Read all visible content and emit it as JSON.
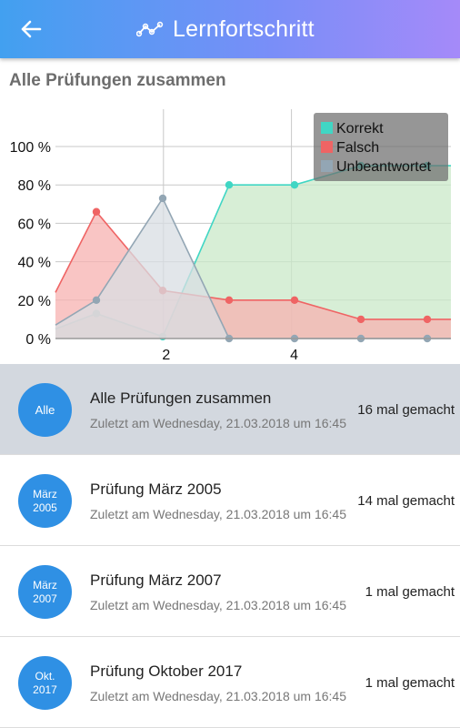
{
  "header": {
    "title": "Lernfortschritt",
    "back_icon": "arrow-left-icon",
    "title_icon": "chart-line-icon"
  },
  "section": {
    "title": "Alle Prüfungen zusammen"
  },
  "chart_data": {
    "type": "area",
    "x": [
      0,
      1,
      2,
      3,
      4,
      5,
      6,
      7
    ],
    "xticks": [
      2,
      4
    ],
    "xtick_labels": [
      "2",
      "4"
    ],
    "yticks": [
      0,
      20,
      40,
      60,
      80,
      100
    ],
    "ytick_labels": [
      "0 %",
      "20 %",
      "40 %",
      "60 %",
      "80 %",
      "100 %"
    ],
    "ylim": [
      0,
      100
    ],
    "legend_position": "top-right",
    "series": [
      {
        "name": "Korrekt",
        "color": "#40d6c4",
        "fill": "#c9e8c8",
        "values": [
          5,
          13,
          1,
          80,
          80,
          90,
          90,
          90
        ]
      },
      {
        "name": "Falsch",
        "color": "#ef6464",
        "fill": "#f7b2b0",
        "values": [
          24,
          66,
          25,
          20,
          20,
          10,
          10,
          10
        ]
      },
      {
        "name": "Unbeantwortet",
        "color": "#93a6b4",
        "fill": "#d8dde3",
        "values": [
          7,
          20,
          73,
          0,
          0,
          0,
          0,
          0
        ]
      }
    ]
  },
  "list": {
    "items": [
      {
        "badge_lines": [
          "Alle"
        ],
        "title": "Alle Prüfungen zusammen",
        "subtitle": "Zuletzt am Wednesday, 21.03.2018 um 16:45",
        "count": "16 mal gemacht",
        "selected": true
      },
      {
        "badge_lines": [
          "März",
          "2005"
        ],
        "title": "Prüfung März 2005",
        "subtitle": "Zuletzt am Wednesday, 21.03.2018 um 16:45",
        "count": "14 mal gemacht",
        "selected": false
      },
      {
        "badge_lines": [
          "März",
          "2007"
        ],
        "title": "Prüfung März 2007",
        "subtitle": "Zuletzt am Wednesday, 21.03.2018 um 16:45",
        "count": "1 mal gemacht",
        "selected": false
      },
      {
        "badge_lines": [
          "Okt.",
          "2017"
        ],
        "title": "Prüfung Oktober 2017",
        "subtitle": "Zuletzt am Wednesday, 21.03.2018 um 16:45",
        "count": "1 mal gemacht",
        "selected": false
      }
    ]
  }
}
